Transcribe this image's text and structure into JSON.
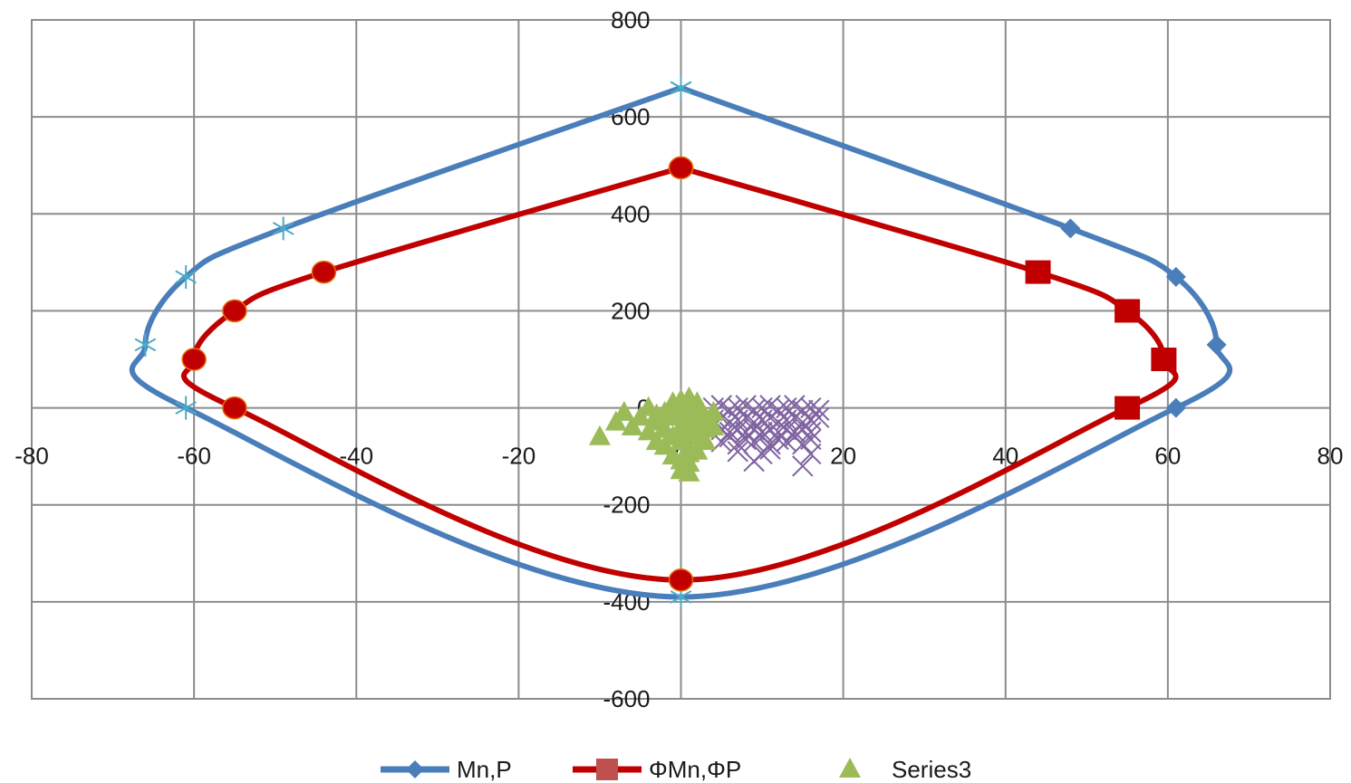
{
  "chart_data": {
    "type": "scatter",
    "title": "",
    "xlabel": "",
    "ylabel": "",
    "xlim": [
      -80,
      80
    ],
    "ylim": [
      -600,
      800
    ],
    "xticks": [
      -80,
      -60,
      -40,
      -20,
      0,
      20,
      40,
      60,
      80
    ],
    "yticks": [
      -600,
      -400,
      -200,
      0,
      200,
      400,
      600,
      800
    ],
    "grid": true,
    "legend_position": "bottom",
    "series": [
      {
        "name": "Mn,P",
        "style": "smooth-line",
        "color": "#4a7ebb",
        "marker_color": "#4bacc6",
        "x": [
          0,
          -49,
          -61,
          -66,
          -61,
          0,
          61,
          66,
          61,
          48,
          0
        ],
        "y": [
          660,
          370,
          270,
          130,
          0,
          -390,
          0,
          130,
          270,
          370,
          660
        ]
      },
      {
        "name": "ΦMn,ΦP",
        "style": "smooth-line",
        "color": "#c00000",
        "marker_color": "#c00000",
        "x": [
          0,
          -44,
          -55,
          -60,
          -55,
          0,
          55,
          59.5,
          55,
          44,
          0
        ],
        "y": [
          495,
          280,
          200,
          100,
          0,
          -355,
          0,
          100,
          200,
          280,
          495
        ]
      },
      {
        "name": "Series3",
        "style": "markers",
        "color": "#9bbb59",
        "x": [
          -10,
          -8,
          -7,
          -6,
          -5,
          -4,
          -4,
          -3,
          -3,
          -2,
          -2,
          -2,
          -1,
          -1,
          -1,
          -1,
          0,
          0,
          0,
          0,
          0,
          0,
          1,
          1,
          1,
          1,
          1,
          1,
          2,
          2,
          2,
          2,
          2,
          3,
          3,
          3,
          4,
          4,
          -1,
          0,
          1,
          2,
          -3,
          3,
          0,
          1
        ],
        "y": [
          -60,
          -30,
          -10,
          -40,
          -20,
          -50,
          0,
          -30,
          -70,
          -10,
          -45,
          -80,
          0,
          -20,
          -60,
          -100,
          -10,
          -40,
          -70,
          -110,
          -130,
          5,
          0,
          -30,
          -55,
          -85,
          -115,
          -135,
          -10,
          -35,
          -60,
          -90,
          10,
          -20,
          -45,
          -70,
          -10,
          -40,
          10,
          15,
          20,
          5,
          -15,
          -25,
          -55,
          -95
        ]
      },
      {
        "name": "",
        "style": "x-markers",
        "color": "#8064a2",
        "x": [
          4,
          5,
          6,
          7,
          8,
          9,
          10,
          11,
          12,
          13,
          14,
          15,
          16,
          17,
          4,
          5,
          6,
          7,
          8,
          9,
          10,
          11,
          12,
          13,
          14,
          15,
          16,
          17,
          5,
          6,
          7,
          8,
          9,
          10,
          11,
          12,
          13,
          14,
          15,
          16,
          5,
          7,
          9,
          11,
          13,
          15,
          6,
          8,
          10,
          12,
          14,
          16,
          9,
          10,
          15,
          16,
          7,
          11
        ],
        "y": [
          0,
          5,
          -5,
          0,
          5,
          -5,
          0,
          5,
          -5,
          0,
          5,
          -5,
          0,
          -5,
          -25,
          -20,
          -30,
          -25,
          -20,
          -30,
          -25,
          -20,
          -30,
          -25,
          -20,
          -30,
          -25,
          -20,
          -45,
          -50,
          -45,
          -50,
          -45,
          -50,
          -45,
          -50,
          -45,
          -50,
          -45,
          -50,
          -70,
          -75,
          -70,
          -75,
          -70,
          -75,
          -60,
          -65,
          -60,
          -65,
          -60,
          -65,
          -110,
          -95,
          -120,
          -95,
          -90,
          -85
        ]
      }
    ],
    "marker_shapes_mn": [
      "star",
      "star",
      "star",
      "star",
      "star",
      "star",
      "diamond",
      "diamond",
      "diamond",
      "diamond",
      "star"
    ],
    "marker_shapes_phi": [
      "circle",
      "circle",
      "circle",
      "circle",
      "circle",
      "circle",
      "square",
      "square",
      "square",
      "square",
      "circle"
    ]
  }
}
